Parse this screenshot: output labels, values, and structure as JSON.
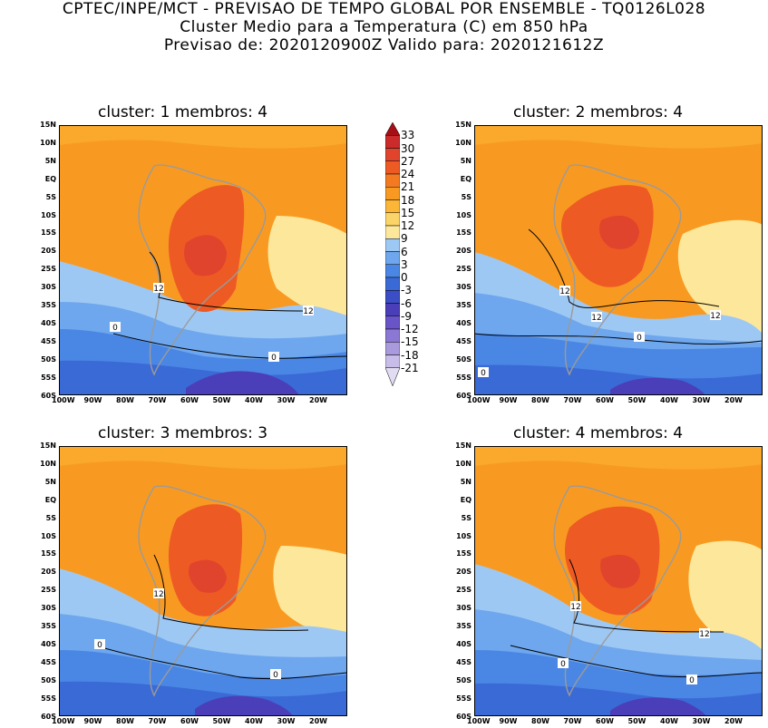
{
  "header": {
    "line1": "CPTEC/INPE/MCT - PREVISAO DE TEMPO GLOBAL POR ENSEMBLE - TQ0126L028",
    "line2": "Cluster Medio para a Temperatura (C) em 850 hPa",
    "line3": "Previsao de: 2020120900Z   Valido para: 2020121612Z"
  },
  "panels": [
    {
      "title": "cluster: 1   membros: 4",
      "contour_labels": [
        "12",
        "12",
        "0",
        "0"
      ]
    },
    {
      "title": "cluster: 2   membros: 4",
      "contour_labels": [
        "12",
        "12",
        "12",
        "0",
        "0"
      ]
    },
    {
      "title": "cluster: 3   membros: 3",
      "contour_labels": [
        "12",
        "0",
        "0"
      ]
    },
    {
      "title": "cluster: 4   membros: 4",
      "contour_labels": [
        "12",
        "12",
        "0",
        "0"
      ]
    }
  ],
  "lat_ticks": [
    "15N",
    "10N",
    "5N",
    "EQ",
    "5S",
    "10S",
    "15S",
    "20S",
    "25S",
    "30S",
    "35S",
    "40S",
    "45S",
    "50S",
    "55S",
    "60S"
  ],
  "lon_ticks": [
    "100W",
    "90W",
    "80W",
    "70W",
    "60W",
    "50W",
    "40W",
    "30W",
    "20W"
  ],
  "colorbar": {
    "levels": [
      "33",
      "30",
      "27",
      "24",
      "21",
      "18",
      "15",
      "12",
      "9",
      "6",
      "3",
      "0",
      "-3",
      "-6",
      "-9",
      "-12",
      "-15",
      "-18",
      "-21"
    ],
    "colors": [
      "#a50f15",
      "#cb2b2b",
      "#e0442c",
      "#ee5a24",
      "#f47a22",
      "#f89a22",
      "#fbb637",
      "#fbd469",
      "#fde79a",
      "#9ec8f4",
      "#6ea7ee",
      "#4a87e4",
      "#3a6ad6",
      "#3b4ec6",
      "#4a3fb8",
      "#6a55c8",
      "#8a78d4",
      "#a99ade",
      "#c8bde8",
      "#e2dcf2"
    ]
  },
  "colors": {
    "warm_bg": "#f89a22",
    "hot": "#ee5a24",
    "hotter": "#e0442c",
    "mild": "#fbb637",
    "pale": "#fde79a",
    "lightblue": "#9ec8f4",
    "blue": "#6ea7ee",
    "midblue": "#4a87e4",
    "deepblue": "#3a6ad6",
    "violet": "#4a3fb8",
    "coast": "#9a9a9a"
  }
}
